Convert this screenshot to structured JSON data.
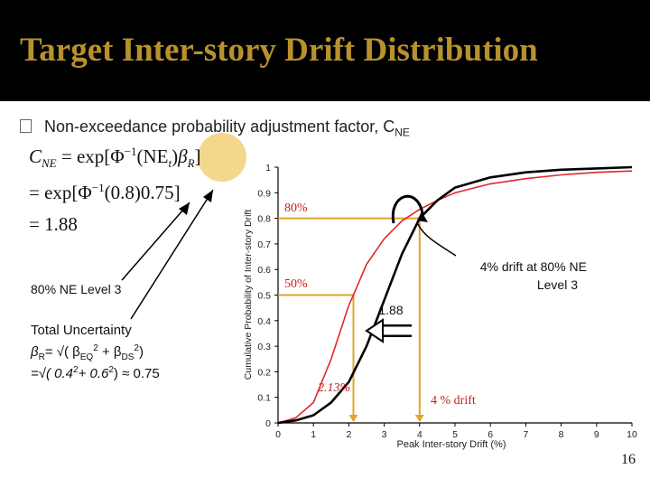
{
  "title": "Target Inter-story Drift Distribution",
  "bullet": {
    "text": "Non-exceedance probability adjustment factor, C",
    "sub": "NE"
  },
  "equation": {
    "line1_lhs": "C",
    "line1_lhs_sub": "NE",
    "line1_mid": " = exp[Φ",
    "line1_sup": "−1",
    "line1_arg": "(NE",
    "line1_arg_sub": "t",
    "line1_close": ")",
    "line1_beta": "β",
    "line1_beta_sub": "R",
    "line1_end": "]",
    "line2": "= exp[Φ",
    "line2_sup": "−1",
    "line2_rest": "(0.8)0.75]",
    "line3": "= 1.88"
  },
  "notes": {
    "level": "80% NE Level 3",
    "uncertainty_title": "Total Uncertainty",
    "formula_beta_r": "β",
    "formula_beta_r_sub": "R",
    "formula_eq_open": "= √( β",
    "formula_eq_sub": "EQ",
    "formula_eq_sup": "2",
    "formula_plus": " + β",
    "formula_ds_sub": "DS",
    "formula_ds_sup": "2",
    "formula_close": ")",
    "value_prefix": "=√( 0.4",
    "value_sup1": "2",
    "value_mid": "+ 0.6",
    "value_sup2": "2",
    "value_close": ") ≈ ",
    "value_result": "0.75"
  },
  "annotations": {
    "p80": "80%",
    "p50": "50%",
    "ratio": "1.88",
    "drift_median": "2.13%",
    "drift_target": "4 % drift",
    "callout_line1": "4% drift at 80% NE",
    "callout_line2": "Level 3"
  },
  "page_number": "16",
  "colors": {
    "title": "#b8912e",
    "red_curve": "#e0282b",
    "black_curve": "#000000",
    "guide": "#e0a629",
    "highlight": "#f3d78c"
  },
  "chart_data": {
    "type": "line",
    "xlabel": "Peak Inter-story Drift (%)",
    "ylabel": "Cumulative Probability of Inter-story Drift",
    "xlim": [
      0,
      10
    ],
    "ylim": [
      0,
      1
    ],
    "xticks": [
      "0",
      "1",
      "2",
      "3",
      "4",
      "5",
      "6",
      "7",
      "8",
      "9",
      "10"
    ],
    "yticks": [
      "0",
      "0.1",
      "0.2",
      "0.3",
      "0.4",
      "0.5",
      "0.6",
      "0.7",
      "0.8",
      "0.9",
      "1"
    ],
    "grid": false,
    "legend": "none",
    "series": [
      {
        "color": "#e0282b",
        "x": [
          0,
          0.5,
          1.0,
          1.5,
          2.0,
          2.13,
          2.5,
          3.0,
          3.5,
          4.0,
          4.5,
          5.0,
          6.0,
          7.0,
          8.0,
          9.0,
          10.0
        ],
        "y": [
          0.0,
          0.02,
          0.08,
          0.25,
          0.46,
          0.5,
          0.62,
          0.72,
          0.79,
          0.835,
          0.87,
          0.9,
          0.935,
          0.955,
          0.97,
          0.98,
          0.985
        ]
      },
      {
        "color": "#000000",
        "x": [
          0,
          0.5,
          1.0,
          1.5,
          2.0,
          2.5,
          3.0,
          3.5,
          4.0,
          4.5,
          5.0,
          6.0,
          7.0,
          8.0,
          9.0,
          10.0
        ],
        "y": [
          0.0,
          0.01,
          0.03,
          0.08,
          0.16,
          0.3,
          0.48,
          0.66,
          0.8,
          0.87,
          0.92,
          0.96,
          0.98,
          0.99,
          0.995,
          1.0
        ]
      }
    ],
    "reference_points": [
      {
        "label": "80%",
        "x": 4.0,
        "y": 0.8
      },
      {
        "label": "50%",
        "x": 2.13,
        "y": 0.5
      }
    ]
  }
}
